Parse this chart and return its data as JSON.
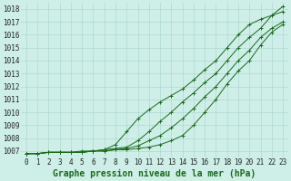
{
  "bg_color": "#ceeee8",
  "grid_color": "#aad4ce",
  "line_color": "#1a6b1a",
  "marker_color": "#1a6b1a",
  "xlabel": "Graphe pression niveau de la mer (hPa)",
  "xlim": [
    -0.5,
    23.5
  ],
  "ylim": [
    1006.5,
    1018.5
  ],
  "yticks": [
    1007,
    1008,
    1009,
    1010,
    1011,
    1012,
    1013,
    1014,
    1015,
    1016,
    1017,
    1018
  ],
  "xticks": [
    0,
    1,
    2,
    3,
    4,
    5,
    6,
    7,
    8,
    9,
    10,
    11,
    12,
    13,
    14,
    15,
    16,
    17,
    18,
    19,
    20,
    21,
    22,
    23
  ],
  "series": [
    [
      1006.8,
      1006.8,
      1006.9,
      1006.9,
      1006.9,
      1006.9,
      1007.0,
      1007.0,
      1007.1,
      1007.1,
      1007.2,
      1007.3,
      1007.5,
      1007.8,
      1008.2,
      1009.0,
      1010.0,
      1011.0,
      1012.2,
      1013.2,
      1014.0,
      1015.2,
      1016.2,
      1016.8
    ],
    [
      1006.8,
      1006.8,
      1006.9,
      1006.9,
      1006.9,
      1006.9,
      1007.0,
      1007.1,
      1007.5,
      1008.5,
      1009.5,
      1010.2,
      1010.8,
      1011.3,
      1011.8,
      1012.5,
      1013.3,
      1014.0,
      1015.0,
      1016.0,
      1016.8,
      1017.2,
      1017.5,
      1017.8
    ],
    [
      1006.8,
      1006.8,
      1006.9,
      1006.9,
      1006.9,
      1006.9,
      1007.0,
      1007.0,
      1007.1,
      1007.2,
      1007.4,
      1007.8,
      1008.2,
      1008.8,
      1009.5,
      1010.3,
      1011.2,
      1012.0,
      1013.0,
      1014.0,
      1014.8,
      1015.8,
      1016.5,
      1017.0
    ],
    [
      1006.8,
      1006.8,
      1006.9,
      1006.9,
      1006.9,
      1007.0,
      1007.0,
      1007.1,
      1007.2,
      1007.3,
      1007.8,
      1008.5,
      1009.3,
      1010.0,
      1010.8,
      1011.5,
      1012.3,
      1013.0,
      1014.0,
      1015.0,
      1015.8,
      1016.5,
      1017.5,
      1018.2
    ]
  ],
  "xlabel_fontsize": 7,
  "tick_fontsize": 5.5,
  "figsize": [
    3.2,
    2.0
  ],
  "dpi": 100
}
